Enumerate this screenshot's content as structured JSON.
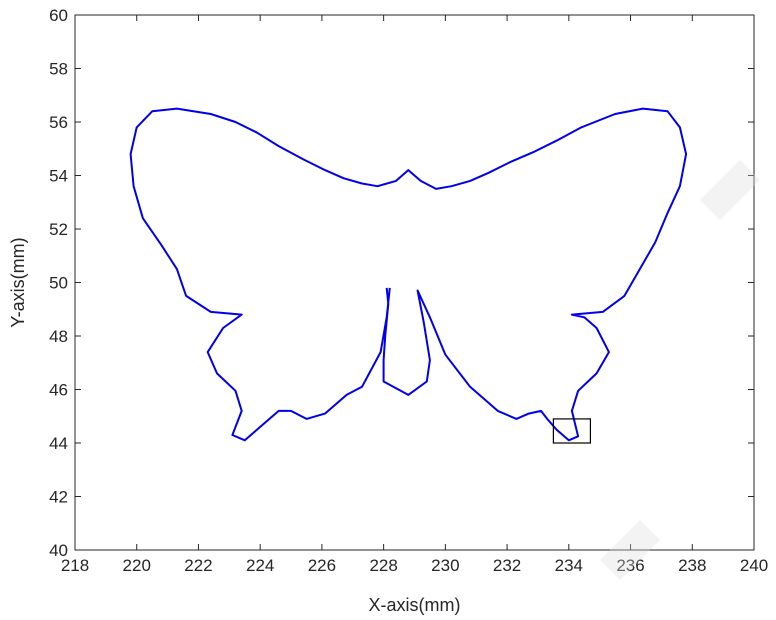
{
  "chart_data": {
    "type": "line",
    "title": "",
    "xlabel": "X-axis(mm)",
    "ylabel": "Y-axis(mm)",
    "xlim": [
      218,
      240
    ],
    "ylim": [
      40,
      60
    ],
    "xticks": [
      "218",
      "220",
      "222",
      "224",
      "226",
      "228",
      "230",
      "232",
      "234",
      "236",
      "238",
      "240"
    ],
    "yticks": [
      "40",
      "42",
      "44",
      "46",
      "48",
      "50",
      "52",
      "54",
      "56",
      "58",
      "60"
    ],
    "grid": false,
    "box": true,
    "series": [
      {
        "color": "#0000ee",
        "points": [
          [
            228.1,
            49.8
          ],
          [
            228.15,
            49.2
          ],
          [
            228.05,
            48.0
          ],
          [
            228.0,
            47.1
          ],
          [
            228.0,
            46.3
          ],
          [
            228.8,
            45.8
          ],
          [
            229.4,
            46.3
          ],
          [
            229.5,
            47.1
          ],
          [
            229.3,
            48.5
          ],
          [
            229.1,
            49.7
          ],
          [
            229.5,
            48.7
          ],
          [
            230.0,
            47.3
          ],
          [
            230.8,
            46.1
          ],
          [
            231.7,
            45.2
          ],
          [
            232.3,
            44.9
          ],
          [
            232.7,
            45.1
          ],
          [
            233.1,
            45.2
          ],
          [
            233.3,
            44.9
          ],
          [
            233.6,
            44.5
          ],
          [
            234.0,
            44.1
          ],
          [
            234.3,
            44.25
          ],
          [
            234.1,
            45.2
          ],
          [
            234.3,
            45.95
          ],
          [
            234.9,
            46.6
          ],
          [
            235.3,
            47.4
          ],
          [
            234.9,
            48.3
          ],
          [
            234.5,
            48.7
          ],
          [
            234.1,
            48.8
          ],
          [
            235.1,
            48.9
          ],
          [
            235.8,
            49.5
          ],
          [
            236.3,
            50.5
          ],
          [
            236.8,
            51.5
          ],
          [
            237.2,
            52.6
          ],
          [
            237.6,
            53.6
          ],
          [
            237.8,
            54.8
          ],
          [
            237.6,
            55.8
          ],
          [
            237.2,
            56.4
          ],
          [
            236.4,
            56.5
          ],
          [
            235.5,
            56.3
          ],
          [
            234.4,
            55.8
          ],
          [
            233.6,
            55.3
          ],
          [
            232.9,
            54.9
          ],
          [
            232.1,
            54.5
          ],
          [
            231.4,
            54.1
          ],
          [
            230.8,
            53.8
          ],
          [
            230.2,
            53.6
          ],
          [
            229.7,
            53.5
          ],
          [
            229.2,
            53.8
          ],
          [
            228.8,
            54.2
          ],
          [
            228.4,
            53.8
          ],
          [
            227.8,
            53.6
          ],
          [
            227.3,
            53.7
          ],
          [
            226.7,
            53.9
          ],
          [
            226.1,
            54.2
          ],
          [
            225.4,
            54.6
          ],
          [
            224.6,
            55.1
          ],
          [
            223.9,
            55.6
          ],
          [
            223.2,
            56.0
          ],
          [
            222.4,
            56.3
          ],
          [
            221.3,
            56.5
          ],
          [
            220.5,
            56.4
          ],
          [
            220.0,
            55.8
          ],
          [
            219.8,
            54.8
          ],
          [
            219.9,
            53.6
          ],
          [
            220.2,
            52.4
          ],
          [
            220.8,
            51.4
          ],
          [
            221.3,
            50.5
          ],
          [
            221.6,
            49.5
          ],
          [
            222.4,
            48.9
          ],
          [
            223.4,
            48.8
          ],
          [
            222.8,
            48.3
          ],
          [
            222.3,
            47.4
          ],
          [
            222.6,
            46.6
          ],
          [
            223.2,
            45.95
          ],
          [
            223.4,
            45.2
          ],
          [
            223.1,
            44.3
          ],
          [
            223.5,
            44.1
          ],
          [
            224.0,
            44.6
          ],
          [
            224.6,
            45.2
          ],
          [
            225.0,
            45.2
          ],
          [
            225.5,
            44.9
          ],
          [
            226.1,
            45.1
          ],
          [
            226.8,
            45.8
          ],
          [
            227.3,
            46.1
          ],
          [
            227.9,
            47.4
          ],
          [
            228.1,
            48.7
          ],
          [
            228.2,
            49.8
          ]
        ]
      }
    ],
    "annotations": [
      {
        "shape": "rectangle",
        "color": "#000000",
        "x_range": [
          233.5,
          234.7
        ],
        "y_range": [
          44.0,
          44.9
        ]
      }
    ]
  }
}
